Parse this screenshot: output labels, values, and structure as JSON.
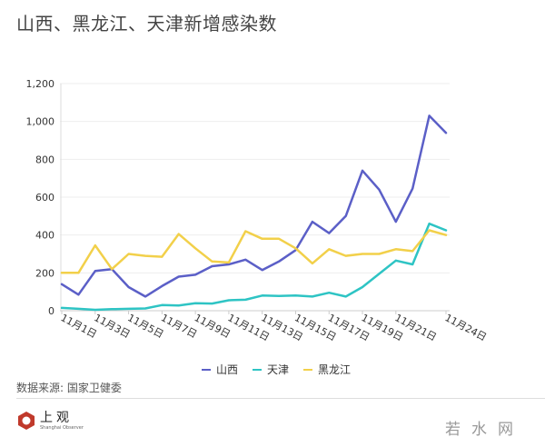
{
  "header": {
    "title": "山西、黑龙江、天津新增感染数"
  },
  "chart_data": {
    "type": "line",
    "title": "山西、黑龙江、天津新增感染数",
    "xlabel": "",
    "ylabel": "",
    "ylim": [
      0,
      1200
    ],
    "yticks": [
      0,
      200,
      400,
      600,
      800,
      1000,
      1200
    ],
    "ytick_labels": [
      "0",
      "200",
      "400",
      "600",
      "800",
      "1,000",
      "1,200"
    ],
    "x": [
      "11月1日",
      "11月2日",
      "11月3日",
      "11月4日",
      "11月5日",
      "11月6日",
      "11月7日",
      "11月8日",
      "11月9日",
      "11月10日",
      "11月11日",
      "11月12日",
      "11月13日",
      "11月14日",
      "11月15日",
      "11月16日",
      "11月17日",
      "11月18日",
      "11月19日",
      "11月20日",
      "11月21日",
      "11月22日",
      "11月23日",
      "11月24日"
    ],
    "xtick_labels": [
      "11月1日",
      "11月3日",
      "11月5日",
      "11月7日",
      "11月9日",
      "11月11日",
      "11月13日",
      "11月15日",
      "11月17日",
      "11月19日",
      "11月21日",
      "11月24日"
    ],
    "xtick_indices": [
      0,
      2,
      4,
      6,
      8,
      10,
      12,
      14,
      16,
      18,
      20,
      23
    ],
    "grid": true,
    "legend_position": "bottom",
    "series": [
      {
        "name": "山西",
        "color": "#5b5fc7",
        "values": [
          140,
          85,
          210,
          220,
          125,
          75,
          130,
          180,
          190,
          235,
          245,
          270,
          215,
          260,
          320,
          470,
          410,
          500,
          740,
          640,
          470,
          645,
          1030,
          940
        ]
      },
      {
        "name": "天津",
        "color": "#2ec4c4",
        "values": [
          15,
          10,
          5,
          8,
          10,
          12,
          30,
          28,
          40,
          38,
          55,
          58,
          80,
          78,
          80,
          75,
          95,
          75,
          125,
          195,
          265,
          245,
          460,
          425
        ]
      },
      {
        "name": "黑龙江",
        "color": "#f2d04a",
        "values": [
          200,
          200,
          345,
          220,
          300,
          290,
          285,
          405,
          330,
          260,
          255,
          420,
          380,
          380,
          330,
          250,
          325,
          290,
          300,
          300,
          325,
          315,
          425,
          400
        ]
      }
    ]
  },
  "legend": {
    "items": [
      {
        "label": "山西",
        "color": "#5b5fc7"
      },
      {
        "label": "天津",
        "color": "#2ec4c4"
      },
      {
        "label": "黑龙江",
        "color": "#f2d04a"
      }
    ]
  },
  "footer": {
    "source": "数据来源: 国家卫健委",
    "logo_cn": "上观",
    "logo_en": "Shanghai Observer",
    "watermark": "若水网"
  }
}
